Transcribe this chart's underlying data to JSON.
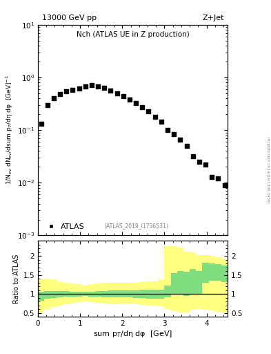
{
  "title_left": "13000 GeV pp",
  "title_right": "Z+Jet",
  "panel_title": "Nch (ATLAS UE in Z production)",
  "ylabel_main": "1/N$_{ev}$ dN$_{ev}$/dsum p$_T$/dη dφ  [GeV]$^{-1}$",
  "ylabel_ratio": "Ratio to ATLAS",
  "xlabel": "sum p$_T$/dη dφ  [GeV]",
  "watermark": "(ATLAS_2019_I1736531)",
  "side_text": "mcplots.cern.ch [arXiv:1306.3436]",
  "xlim": [
    0,
    4.5
  ],
  "ylim_main": [
    0.001,
    10
  ],
  "ylim_ratio": [
    0.4,
    2.4
  ],
  "atlas_data_x": [
    0.075,
    0.225,
    0.375,
    0.525,
    0.675,
    0.825,
    0.975,
    1.125,
    1.275,
    1.425,
    1.575,
    1.725,
    1.875,
    2.025,
    2.175,
    2.325,
    2.475,
    2.625,
    2.775,
    2.925,
    3.075,
    3.225,
    3.375,
    3.525,
    3.675,
    3.825,
    3.975,
    4.125,
    4.275,
    4.425
  ],
  "atlas_data_y": [
    0.13,
    0.3,
    0.4,
    0.48,
    0.54,
    0.58,
    0.62,
    0.68,
    0.72,
    0.68,
    0.63,
    0.57,
    0.5,
    0.44,
    0.38,
    0.33,
    0.27,
    0.225,
    0.18,
    0.145,
    0.1,
    0.085,
    0.065,
    0.05,
    0.032,
    0.025,
    0.022,
    0.013,
    0.012,
    0.009
  ],
  "ratio_bin_edges": [
    0.0,
    0.15,
    0.3,
    0.45,
    0.6,
    0.75,
    0.9,
    1.05,
    1.2,
    1.35,
    1.5,
    1.65,
    1.8,
    1.95,
    2.1,
    2.25,
    2.4,
    2.55,
    2.7,
    2.85,
    3.0,
    3.15,
    3.3,
    3.45,
    3.6,
    3.75,
    3.9,
    4.05,
    4.2,
    4.35,
    4.5
  ],
  "green_lo": [
    0.82,
    0.88,
    0.9,
    0.92,
    0.93,
    0.94,
    0.94,
    0.95,
    0.94,
    0.93,
    0.92,
    0.91,
    0.91,
    0.91,
    0.91,
    0.9,
    0.89,
    0.88,
    0.88,
    0.88,
    0.92,
    1.0,
    1.0,
    0.95,
    1.0,
    1.0,
    1.3,
    1.35,
    1.35,
    1.32
  ],
  "green_hi": [
    1.05,
    1.08,
    1.08,
    1.07,
    1.07,
    1.06,
    1.06,
    1.05,
    1.06,
    1.07,
    1.08,
    1.09,
    1.09,
    1.09,
    1.09,
    1.1,
    1.11,
    1.12,
    1.12,
    1.12,
    1.22,
    1.55,
    1.6,
    1.58,
    1.65,
    1.6,
    1.82,
    1.8,
    1.78,
    1.75
  ],
  "yellow_lo": [
    0.52,
    0.6,
    0.65,
    0.7,
    0.73,
    0.76,
    0.78,
    0.8,
    0.78,
    0.76,
    0.75,
    0.74,
    0.74,
    0.75,
    0.75,
    0.73,
    0.71,
    0.7,
    0.7,
    0.68,
    0.6,
    0.55,
    0.52,
    0.52,
    0.58,
    0.6,
    0.58,
    0.56,
    0.54,
    0.52
  ],
  "yellow_hi": [
    1.38,
    1.4,
    1.38,
    1.32,
    1.3,
    1.27,
    1.25,
    1.23,
    1.25,
    1.27,
    1.29,
    1.3,
    1.3,
    1.29,
    1.29,
    1.3,
    1.32,
    1.33,
    1.33,
    1.38,
    2.25,
    2.25,
    2.22,
    2.12,
    2.1,
    2.02,
    2.02,
    2.0,
    1.96,
    1.92
  ],
  "color_green": "#80DD80",
  "color_yellow": "#FFFF80",
  "color_data": "#000000",
  "marker_size": 5
}
